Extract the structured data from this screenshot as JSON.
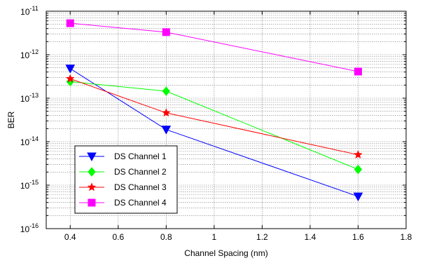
{
  "chart_data": {
    "type": "line",
    "xlabel": "Channel Spacing (nm)",
    "ylabel": "BER",
    "xlim": [
      0.3,
      1.8
    ],
    "ylim": [
      1e-16,
      1e-11
    ],
    "y_scale": "log",
    "grid": "on (major and minor)",
    "legend_position": "bottom-left",
    "x_ticks": [
      0.4,
      0.6,
      0.8,
      1,
      1.2,
      1.4,
      1.6,
      1.8
    ],
    "x_tick_labels": [
      "0.4",
      "0.6",
      "0.8",
      "1",
      "1.2",
      "1.4",
      "1.6",
      "1.8"
    ],
    "y_ticks": [
      {
        "base": "10",
        "exp": "-16",
        "value": 1e-16
      },
      {
        "base": "10",
        "exp": "-15",
        "value": 1e-15
      },
      {
        "base": "10",
        "exp": "-14",
        "value": 1e-14
      },
      {
        "base": "10",
        "exp": "-13",
        "value": 1e-13
      },
      {
        "base": "10",
        "exp": "-12",
        "value": 1e-12
      },
      {
        "base": "10",
        "exp": "-11",
        "value": 1e-11
      }
    ],
    "x": [
      0.4,
      0.8,
      1.6
    ],
    "series": [
      {
        "name": "DS Channel 1",
        "color": "#0000ff",
        "marker": "triangle-down",
        "values": [
          4.8e-13,
          1.9e-14,
          5.5e-16
        ]
      },
      {
        "name": "DS Channel 2",
        "color": "#00ff00",
        "marker": "diamond",
        "values": [
          2.4e-13,
          1.45e-13,
          2.3e-15
        ]
      },
      {
        "name": "DS Channel 3",
        "color": "#ff0000",
        "marker": "star",
        "values": [
          2.8e-13,
          4.6e-14,
          5e-15
        ]
      },
      {
        "name": "DS Channel 4",
        "color": "#ff00ff",
        "marker": "square",
        "values": [
          5.3e-12,
          3.3e-12,
          4.1e-13
        ]
      }
    ]
  }
}
